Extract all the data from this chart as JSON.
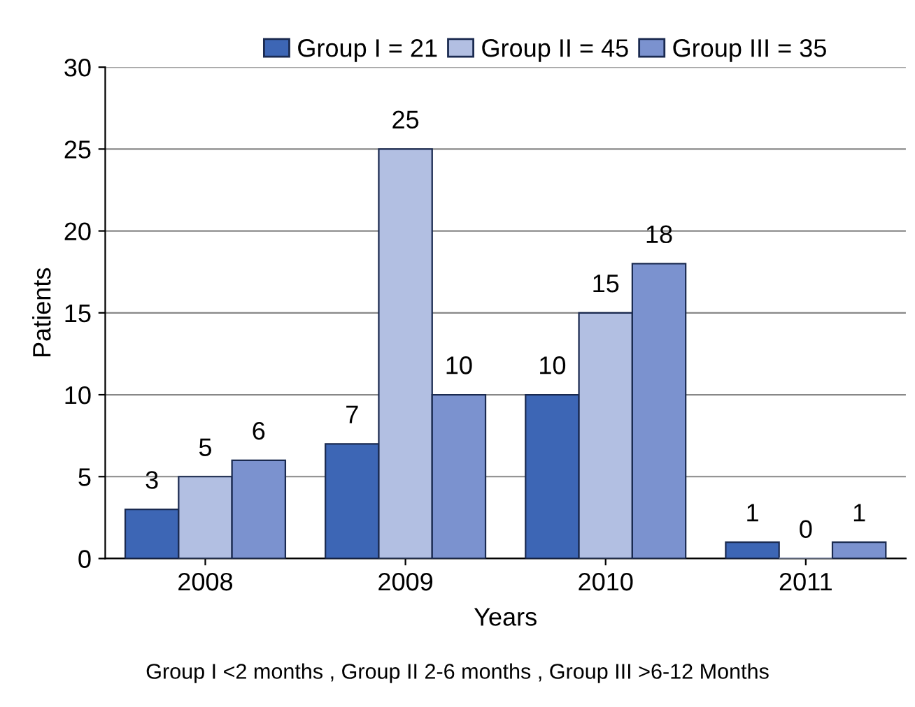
{
  "chart_data": {
    "type": "bar",
    "xlabel": "Years",
    "ylabel": "Patients",
    "categories": [
      "2008",
      "2009",
      "2010",
      "2011"
    ],
    "series": [
      {
        "name": "Group I = 21",
        "color": "#3d66b5",
        "values": [
          3,
          7,
          10,
          1
        ]
      },
      {
        "name": "Group II = 45",
        "color": "#b2bfe2",
        "values": [
          5,
          25,
          15,
          0
        ]
      },
      {
        "name": "Group III = 35",
        "color": "#7b92cf",
        "values": [
          6,
          10,
          18,
          1
        ]
      }
    ],
    "ylim": [
      0,
      30
    ],
    "yticks": [
      0,
      5,
      10,
      15,
      20,
      25,
      30
    ],
    "grid": "y",
    "legend": "top",
    "data_labels": true,
    "annotations": [
      "Group I <2 months , Group II 2-6 months , Group III >6-12 Months"
    ]
  }
}
